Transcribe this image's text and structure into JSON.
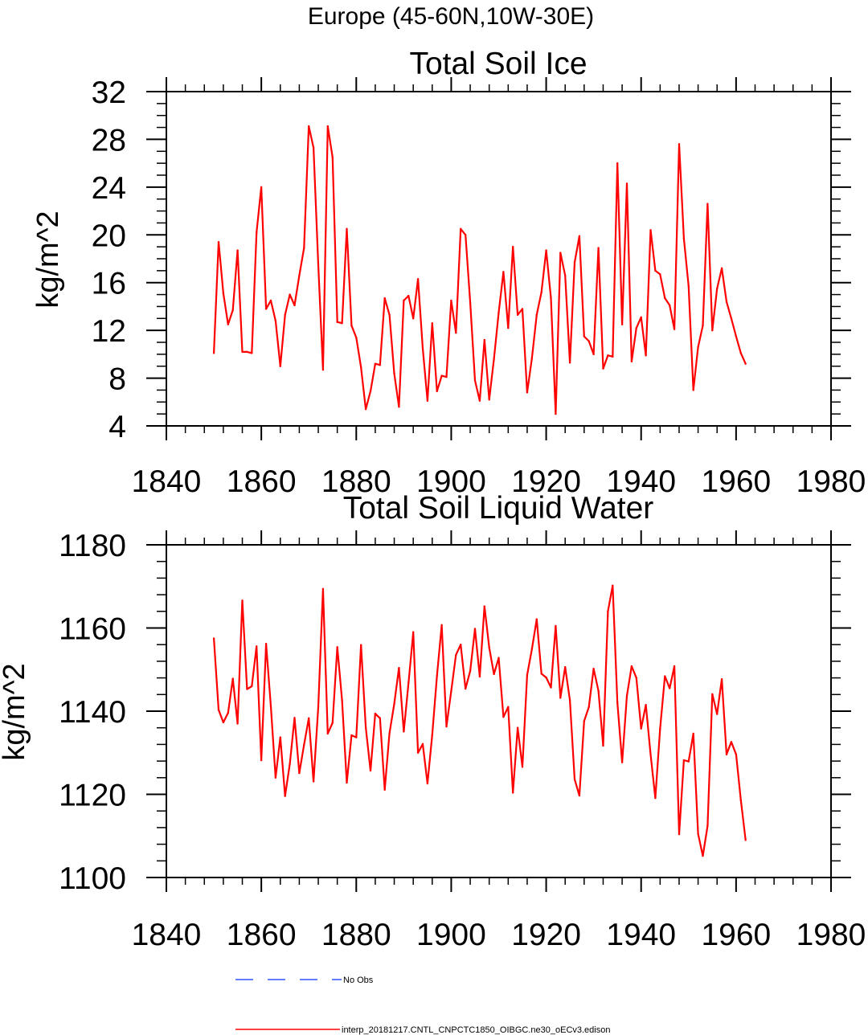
{
  "page_title": "Europe (45-60N,10W-30E)",
  "legend": {
    "entries": [
      {
        "label": "No Obs",
        "color": "#3050ff",
        "style": "dashed"
      },
      {
        "label": "interp_20181217.CNTL_CNPCTC1850_OIBGC.ne30_oECv3.edison",
        "color": "#ff0000",
        "style": "solid"
      }
    ]
  },
  "chart_data": [
    {
      "type": "line",
      "title": "Total Soil Ice",
      "xlabel": "",
      "ylabel": "kg/m^2",
      "xlim": [
        1840,
        1980
      ],
      "ylim": [
        4,
        32
      ],
      "xticks": [
        1840,
        1860,
        1880,
        1900,
        1920,
        1940,
        1960,
        1980
      ],
      "yticks": [
        4,
        8,
        12,
        16,
        20,
        24,
        28,
        32
      ],
      "x_minor_step": 4,
      "y_minor_step": 1,
      "series": [
        {
          "name": "interp_20181217.CNTL_CNPCTC1850_OIBGC.ne30_oECv3.edison",
          "color": "#ff0000",
          "x": [
            1850,
            1851,
            1852,
            1853,
            1854,
            1855,
            1856,
            1857,
            1858,
            1859,
            1860,
            1861,
            1862,
            1863,
            1864,
            1865,
            1866,
            1867,
            1868,
            1869,
            1870,
            1871,
            1872,
            1873,
            1874,
            1875,
            1876,
            1877,
            1878,
            1879,
            1880,
            1881,
            1882,
            1883,
            1884,
            1885,
            1886,
            1887,
            1888,
            1889,
            1890,
            1891,
            1892,
            1893,
            1894,
            1895,
            1896,
            1897,
            1898,
            1899,
            1900,
            1901,
            1902,
            1903,
            1904,
            1905,
            1906,
            1907,
            1908,
            1909,
            1910,
            1911,
            1912,
            1913,
            1914,
            1915,
            1916,
            1917,
            1918,
            1919,
            1920,
            1921,
            1922,
            1923,
            1924,
            1925,
            1926,
            1927,
            1928,
            1929,
            1930,
            1931,
            1932,
            1933,
            1934,
            1935,
            1936,
            1937,
            1938,
            1939,
            1940,
            1941,
            1942,
            1943,
            1944,
            1945,
            1946,
            1947,
            1948,
            1949,
            1950,
            1951,
            1952,
            1953,
            1954,
            1955,
            1956,
            1957,
            1958,
            1959,
            1960,
            1961,
            1962
          ],
          "values": [
            10.1,
            19.4,
            15.1,
            12.5,
            13.7,
            18.7,
            10.2,
            10.2,
            10.1,
            20.2,
            24.0,
            13.8,
            14.5,
            12.8,
            9.0,
            13.3,
            15.0,
            14.1,
            16.6,
            18.9,
            29.1,
            27.3,
            17.5,
            8.7,
            29.1,
            26.5,
            12.7,
            12.6,
            20.5,
            12.4,
            11.4,
            8.9,
            5.4,
            6.9,
            9.2,
            9.1,
            14.7,
            13.3,
            8.4,
            5.6,
            14.5,
            14.9,
            13.0,
            16.3,
            10.5,
            6.1,
            12.6,
            6.9,
            8.2,
            8.1,
            14.5,
            11.8,
            20.5,
            20.0,
            14.3,
            7.8,
            6.1,
            11.2,
            6.2,
            9.6,
            13.5,
            16.9,
            12.2,
            19.0,
            13.3,
            13.8,
            6.8,
            9.7,
            13.3,
            15.2,
            18.7,
            14.7,
            5.0,
            18.5,
            16.6,
            9.3,
            17.7,
            19.9,
            11.5,
            11.1,
            10.0,
            18.9,
            8.8,
            9.9,
            9.8,
            26.0,
            12.5,
            24.3,
            9.4,
            12.2,
            13.1,
            9.9,
            20.4,
            17.0,
            16.7,
            14.7,
            14.1,
            12.1,
            27.6,
            19.7,
            15.7,
            7.0,
            10.6,
            12.4,
            22.6,
            12.0,
            15.5,
            17.2,
            14.4,
            13.0,
            11.5,
            10.1,
            9.2
          ]
        }
      ]
    },
    {
      "type": "line",
      "title": "Total Soil Liquid Water",
      "xlabel": "",
      "ylabel": "kg/m^2",
      "xlim": [
        1840,
        1980
      ],
      "ylim": [
        1100,
        1180
      ],
      "xticks": [
        1840,
        1860,
        1880,
        1900,
        1920,
        1940,
        1960,
        1980
      ],
      "yticks": [
        1100,
        1120,
        1140,
        1160,
        1180
      ],
      "x_minor_step": 4,
      "y_minor_step": 4,
      "series": [
        {
          "name": "interp_20181217.CNTL_CNPCTC1850_OIBGC.ne30_oECv3.edison",
          "color": "#ff0000",
          "x": [
            1850,
            1851,
            1852,
            1853,
            1854,
            1855,
            1856,
            1857,
            1858,
            1859,
            1860,
            1861,
            1862,
            1863,
            1864,
            1865,
            1866,
            1867,
            1868,
            1869,
            1870,
            1871,
            1872,
            1873,
            1874,
            1875,
            1876,
            1877,
            1878,
            1879,
            1880,
            1881,
            1882,
            1883,
            1884,
            1885,
            1886,
            1887,
            1888,
            1889,
            1890,
            1891,
            1892,
            1893,
            1894,
            1895,
            1896,
            1897,
            1898,
            1899,
            1900,
            1901,
            1902,
            1903,
            1904,
            1905,
            1906,
            1907,
            1908,
            1909,
            1910,
            1911,
            1912,
            1913,
            1914,
            1915,
            1916,
            1917,
            1918,
            1919,
            1920,
            1921,
            1922,
            1923,
            1924,
            1925,
            1926,
            1927,
            1928,
            1929,
            1930,
            1931,
            1932,
            1933,
            1934,
            1935,
            1936,
            1937,
            1938,
            1939,
            1940,
            1941,
            1942,
            1943,
            1944,
            1945,
            1946,
            1947,
            1948,
            1949,
            1950,
            1951,
            1952,
            1953,
            1954,
            1955,
            1956,
            1957,
            1958,
            1959,
            1960,
            1961,
            1962
          ],
          "values": [
            1157.5,
            1140.3,
            1137.3,
            1139.6,
            1147.8,
            1137.0,
            1166.6,
            1145.3,
            1146.0,
            1155.6,
            1128.2,
            1156.2,
            1141.2,
            1124.0,
            1133.7,
            1119.6,
            1127.3,
            1138.4,
            1125.1,
            1131.9,
            1138.3,
            1123.1,
            1141.0,
            1169.4,
            1134.6,
            1137.2,
            1155.4,
            1142.6,
            1122.8,
            1134.2,
            1133.7,
            1155.9,
            1136.1,
            1125.7,
            1139.4,
            1138.3,
            1121.1,
            1134.7,
            1141.7,
            1150.4,
            1135.1,
            1146.8,
            1159.0,
            1130.0,
            1132.1,
            1122.6,
            1134.3,
            1148.5,
            1160.7,
            1136.3,
            1144.8,
            1153.5,
            1156.0,
            1145.4,
            1149.7,
            1159.8,
            1148.3,
            1165.2,
            1155.3,
            1148.9,
            1152.8,
            1138.6,
            1141.0,
            1120.4,
            1136.0,
            1126.6,
            1148.7,
            1155.0,
            1162.1,
            1149.0,
            1148.1,
            1145.7,
            1160.5,
            1143.2,
            1150.6,
            1142.6,
            1123.6,
            1119.7,
            1137.6,
            1141.0,
            1150.2,
            1144.9,
            1131.7,
            1164.0,
            1170.2,
            1142.0,
            1127.7,
            1143.7,
            1150.8,
            1148.0,
            1135.8,
            1141.5,
            1129.6,
            1119.1,
            1135.7,
            1148.4,
            1145.5,
            1150.8,
            1110.4,
            1128.2,
            1127.9,
            1134.6,
            1110.5,
            1105.2,
            1112.4,
            1144.1,
            1139.3,
            1147.7,
            1129.6,
            1132.6,
            1129.6,
            1118.6,
            1109.0
          ]
        }
      ]
    }
  ]
}
